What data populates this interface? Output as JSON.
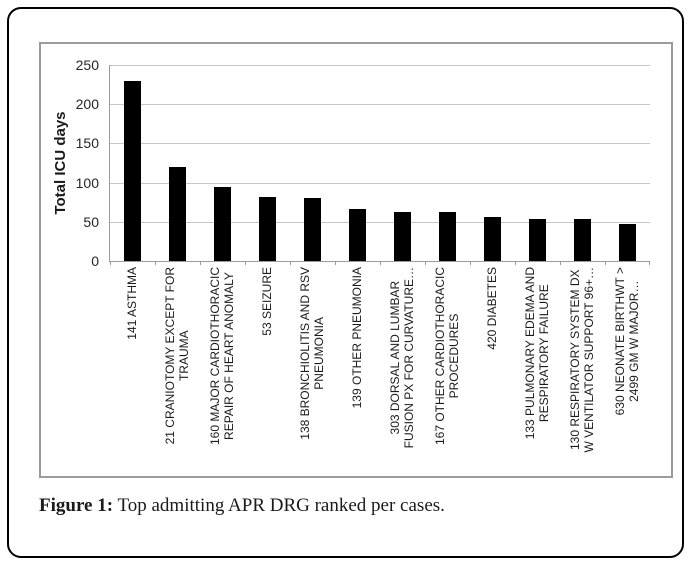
{
  "figure": {
    "caption_label": "Figure 1:",
    "caption_text": " Top admitting APR DRG ranked per cases."
  },
  "chart_data": {
    "type": "bar",
    "title": "",
    "xlabel": "",
    "ylabel": "Total ICU days",
    "ylim": [
      0,
      250
    ],
    "yticks": [
      0,
      50,
      100,
      150,
      200,
      250
    ],
    "grid": true,
    "legend": false,
    "categories": [
      "141 ASTHMA",
      "21 CRANIOTOMY EXCEPT FOR\nTRAUMA",
      "160  MAJOR CARDIOTHORACIC\nREPAIR OF HEART ANOMALY",
      "53 SEIZURE",
      "138 BRONCHIOLITIS AND RSV\nPNEUMONIA",
      "139 OTHER PNEUMONIA",
      "303 DORSAL AND LUMBAR\nFUSION PX FOR CURVATURE…",
      "167 OTHER CARDIOTHORACIC\nPROCEDURES",
      "420 DIABETES",
      "133 PULMONARY EDEMA AND\nRESPIRATORY FAILURE",
      "130 RESPIRATORY SYSTEM DX\nW VENTILATOR SUPPORT 96+…",
      "630 NEONATE BIRTHWT >\n2499 GM W MAJOR…"
    ],
    "values": [
      230,
      120,
      95,
      81,
      80,
      66,
      63,
      62,
      56,
      54,
      53,
      47
    ]
  },
  "colors": {
    "bar": "#000000",
    "gridline": "#c6c6c6",
    "axis": "#9b9b9b",
    "chart_border": "#9b9b9b",
    "frame_border": "#000000",
    "text": "#1a1a1a"
  }
}
